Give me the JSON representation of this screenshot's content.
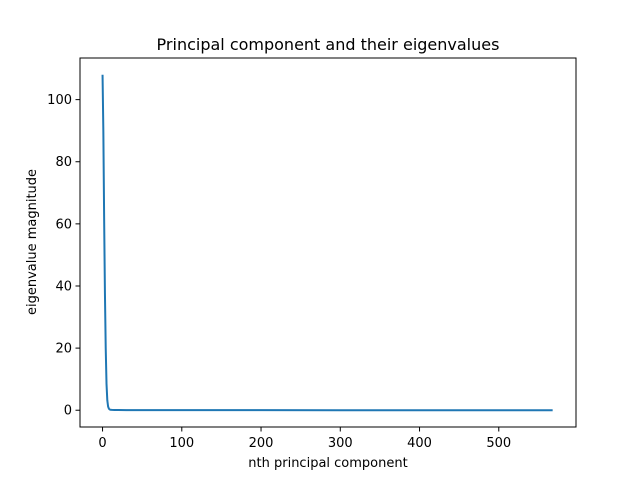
{
  "chart_data": {
    "type": "line",
    "title": "Principal component and their eigenvalues",
    "xlabel": "nth principal component",
    "ylabel": "eigenvalue magnitude",
    "xlim": [
      -28.45,
      597.45
    ],
    "ylim": [
      -5.4,
      113.4
    ],
    "x_ticks": [
      0,
      100,
      200,
      300,
      400,
      500
    ],
    "y_ticks": [
      0,
      20,
      40,
      60,
      80,
      100
    ],
    "grid": false,
    "series": [
      {
        "color": "#1f77b4",
        "x": [
          0,
          1,
          2,
          3,
          4,
          5,
          6,
          7,
          8,
          9,
          10,
          12,
          15,
          20,
          30,
          50,
          100,
          200,
          300,
          400,
          500,
          568
        ],
        "y": [
          108,
          90,
          62,
          38,
          20,
          8.5,
          3.2,
          1.2,
          0.5,
          0.25,
          0.15,
          0.1,
          0.08,
          0.06,
          0.05,
          0.04,
          0.03,
          0.02,
          0.01,
          0.01,
          0.005,
          0.0
        ]
      }
    ]
  }
}
